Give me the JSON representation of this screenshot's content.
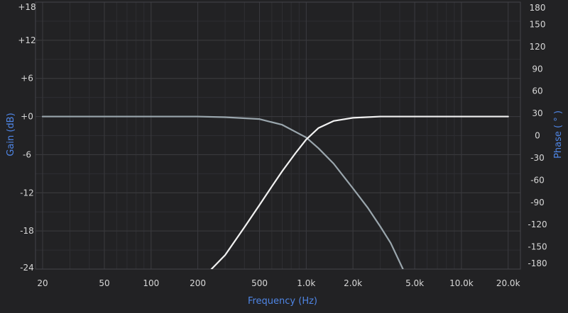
{
  "chart_data": {
    "type": "line",
    "xlabel": "Frequency (Hz)",
    "ylabel_left": "Gain (dB)",
    "ylabel_right": "Phase ( ° )",
    "x_scale": "log",
    "xlim": [
      18,
      24000
    ],
    "ylim_left": [
      -24,
      18
    ],
    "ylim_right": [
      -180,
      180
    ],
    "x_ticks": [
      {
        "value": 20,
        "label": "20"
      },
      {
        "value": 50,
        "label": "50"
      },
      {
        "value": 100,
        "label": "100"
      },
      {
        "value": 200,
        "label": "200"
      },
      {
        "value": 500,
        "label": "500"
      },
      {
        "value": 1000,
        "label": "1.0k"
      },
      {
        "value": 2000,
        "label": "2.0k"
      },
      {
        "value": 5000,
        "label": "5.0k"
      },
      {
        "value": 10000,
        "label": "10.0k"
      },
      {
        "value": 20000,
        "label": "20.0k"
      }
    ],
    "y_left_ticks": [
      {
        "value": 18,
        "label": "+18"
      },
      {
        "value": 12,
        "label": "+12"
      },
      {
        "value": 6,
        "label": "+6"
      },
      {
        "value": 0,
        "label": "+0"
      },
      {
        "value": -6,
        "label": "-6"
      },
      {
        "value": -12,
        "label": "-12"
      },
      {
        "value": -18,
        "label": "-18"
      },
      {
        "value": -24,
        "label": "-24"
      }
    ],
    "y_right_ticks": [
      {
        "value": 180,
        "label": "180"
      },
      {
        "value": 150,
        "label": "150"
      },
      {
        "value": 120,
        "label": "120"
      },
      {
        "value": 90,
        "label": "90"
      },
      {
        "value": 60,
        "label": "60"
      },
      {
        "value": 30,
        "label": "30"
      },
      {
        "value": 0,
        "label": "0"
      },
      {
        "value": -30,
        "label": "-30"
      },
      {
        "value": -60,
        "label": "-60"
      },
      {
        "value": -90,
        "label": "-90"
      },
      {
        "value": -120,
        "label": "-120"
      },
      {
        "value": -150,
        "label": "-150"
      },
      {
        "value": -180,
        "label": "-180"
      }
    ],
    "grid": true,
    "series": [
      {
        "color": "#9aa6ad",
        "x": [
          20,
          50,
          100,
          200,
          300,
          500,
          700,
          1000,
          1200,
          1500,
          2000,
          2500,
          3000,
          3500,
          4200
        ],
        "y": [
          0,
          0,
          0,
          0,
          -0.1,
          -0.4,
          -1.3,
          -3.3,
          -5.0,
          -7.4,
          -11.3,
          -14.4,
          -17.3,
          -19.9,
          -24
        ]
      },
      {
        "color": "#f2f2f2",
        "x": [
          245,
          300,
          400,
          500,
          600,
          700,
          850,
          1000,
          1200,
          1500,
          2000,
          3000,
          5000,
          10000,
          20000
        ],
        "y": [
          -24,
          -21.8,
          -17.4,
          -13.9,
          -11.0,
          -8.6,
          -5.8,
          -3.6,
          -1.8,
          -0.7,
          -0.2,
          0,
          0,
          0,
          0
        ]
      }
    ]
  },
  "colors": {
    "background": "#222224",
    "grid": "#3a3a3e",
    "grid_minor": "#2e2e32",
    "axis_title": "#4f86e6",
    "tick_label": "#d8d8d8"
  }
}
